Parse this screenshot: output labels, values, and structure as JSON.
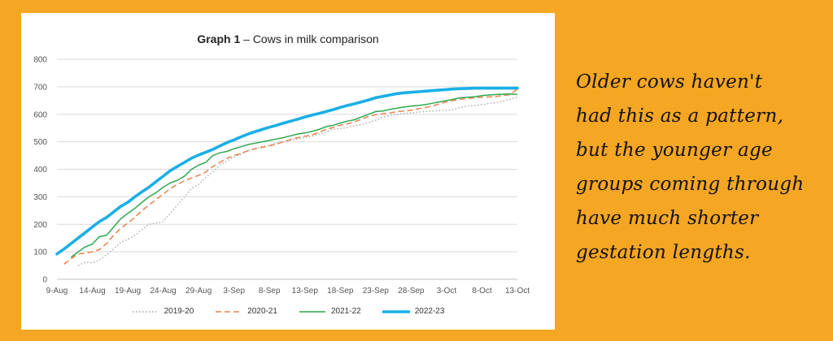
{
  "title_bold": "Graph 1",
  "title_rest": " – Cows in milk comparison",
  "note_lines": [
    "Older cows haven't",
    "had this as a pattern,",
    "but the younger age",
    "groups coming through",
    "have much shorter",
    "gestation lengths."
  ],
  "colors": {
    "background": "#F5A623",
    "s2019": "#a6a6a6",
    "s2020": "#E8824A",
    "s2021": "#2EA84F",
    "s2022": "#1AAFE6"
  },
  "chart_data": {
    "type": "line",
    "title": "Graph 1 – Cows in milk comparison",
    "xlabel": "",
    "ylabel": "",
    "ylim": [
      0,
      800
    ],
    "yticks": [
      0,
      100,
      200,
      300,
      400,
      500,
      600,
      700,
      800
    ],
    "xlim_days": [
      0,
      65
    ],
    "xticks": [
      {
        "day": 0,
        "label": "9-Aug"
      },
      {
        "day": 5,
        "label": "14-Aug"
      },
      {
        "day": 10,
        "label": "19-Aug"
      },
      {
        "day": 15,
        "label": "24-Aug"
      },
      {
        "day": 20,
        "label": "29-Aug"
      },
      {
        "day": 25,
        "label": "3-Sep"
      },
      {
        "day": 30,
        "label": "8-Sep"
      },
      {
        "day": 35,
        "label": "13-Sep"
      },
      {
        "day": 40,
        "label": "18-Sep"
      },
      {
        "day": 45,
        "label": "23-Sep"
      },
      {
        "day": 50,
        "label": "28-Sep"
      },
      {
        "day": 55,
        "label": "3-Oct"
      },
      {
        "day": 60,
        "label": "8-Oct"
      },
      {
        "day": 65,
        "label": "13-Oct"
      }
    ],
    "grid": true,
    "legend": "bottom",
    "series": [
      {
        "name": "2019-20",
        "key": "s2019",
        "style": "dotted",
        "points": [
          [
            3,
            50
          ],
          [
            4,
            62
          ],
          [
            5,
            60
          ],
          [
            6,
            70
          ],
          [
            7,
            90
          ],
          [
            8,
            110
          ],
          [
            9,
            135
          ],
          [
            10,
            145
          ],
          [
            11,
            160
          ],
          [
            12,
            180
          ],
          [
            13,
            200
          ],
          [
            14,
            205
          ],
          [
            15,
            210
          ],
          [
            16,
            240
          ],
          [
            17,
            270
          ],
          [
            18,
            300
          ],
          [
            19,
            330
          ],
          [
            20,
            345
          ],
          [
            21,
            370
          ],
          [
            22,
            390
          ],
          [
            23,
            415
          ],
          [
            24,
            430
          ],
          [
            25,
            445
          ],
          [
            26,
            455
          ],
          [
            27,
            468
          ],
          [
            28,
            475
          ],
          [
            29,
            482
          ],
          [
            30,
            488
          ],
          [
            31,
            495
          ],
          [
            32,
            500
          ],
          [
            33,
            506
          ],
          [
            34,
            510
          ],
          [
            35,
            515
          ],
          [
            36,
            520
          ],
          [
            37,
            528
          ],
          [
            38,
            535
          ],
          [
            39,
            545
          ],
          [
            40,
            548
          ],
          [
            41,
            552
          ],
          [
            42,
            558
          ],
          [
            43,
            563
          ],
          [
            44,
            570
          ],
          [
            45,
            578
          ],
          [
            46,
            590
          ],
          [
            47,
            595
          ],
          [
            48,
            600
          ],
          [
            49,
            603
          ],
          [
            50,
            605
          ],
          [
            51,
            608
          ],
          [
            52,
            610
          ],
          [
            53,
            612
          ],
          [
            54,
            613
          ],
          [
            55,
            615
          ],
          [
            56,
            618
          ],
          [
            57,
            625
          ],
          [
            58,
            630
          ],
          [
            59,
            632
          ],
          [
            60,
            635
          ],
          [
            61,
            640
          ],
          [
            62,
            642
          ],
          [
            63,
            648
          ],
          [
            64,
            655
          ],
          [
            65,
            662
          ]
        ]
      },
      {
        "name": "2020-21",
        "key": "s2020",
        "style": "dashed",
        "points": [
          [
            1,
            55
          ],
          [
            2,
            75
          ],
          [
            3,
            92
          ],
          [
            4,
            95
          ],
          [
            5,
            100
          ],
          [
            6,
            108
          ],
          [
            7,
            130
          ],
          [
            8,
            160
          ],
          [
            9,
            185
          ],
          [
            10,
            205
          ],
          [
            11,
            225
          ],
          [
            12,
            250
          ],
          [
            13,
            270
          ],
          [
            14,
            290
          ],
          [
            15,
            310
          ],
          [
            16,
            330
          ],
          [
            17,
            345
          ],
          [
            18,
            358
          ],
          [
            19,
            368
          ],
          [
            20,
            378
          ],
          [
            21,
            390
          ],
          [
            22,
            410
          ],
          [
            23,
            425
          ],
          [
            24,
            440
          ],
          [
            25,
            450
          ],
          [
            26,
            458
          ],
          [
            27,
            468
          ],
          [
            28,
            475
          ],
          [
            29,
            480
          ],
          [
            30,
            485
          ],
          [
            31,
            492
          ],
          [
            32,
            500
          ],
          [
            33,
            508
          ],
          [
            34,
            515
          ],
          [
            35,
            520
          ],
          [
            36,
            525
          ],
          [
            37,
            535
          ],
          [
            38,
            545
          ],
          [
            39,
            552
          ],
          [
            40,
            560
          ],
          [
            41,
            565
          ],
          [
            42,
            572
          ],
          [
            43,
            582
          ],
          [
            44,
            592
          ],
          [
            45,
            598
          ],
          [
            46,
            602
          ],
          [
            47,
            605
          ],
          [
            48,
            610
          ],
          [
            49,
            612
          ],
          [
            50,
            615
          ],
          [
            51,
            620
          ],
          [
            52,
            625
          ],
          [
            53,
            630
          ],
          [
            54,
            638
          ],
          [
            55,
            645
          ],
          [
            56,
            650
          ],
          [
            57,
            655
          ],
          [
            58,
            658
          ],
          [
            59,
            660
          ],
          [
            60,
            662
          ],
          [
            61,
            663
          ],
          [
            62,
            665
          ],
          [
            63,
            668
          ],
          [
            64,
            672
          ],
          [
            65,
            692
          ]
        ]
      },
      {
        "name": "2021-22",
        "key": "s2021",
        "style": "solid",
        "points": [
          [
            2,
            80
          ],
          [
            3,
            100
          ],
          [
            4,
            118
          ],
          [
            5,
            128
          ],
          [
            6,
            155
          ],
          [
            7,
            160
          ],
          [
            8,
            190
          ],
          [
            9,
            220
          ],
          [
            10,
            240
          ],
          [
            11,
            258
          ],
          [
            12,
            280
          ],
          [
            13,
            300
          ],
          [
            14,
            315
          ],
          [
            15,
            335
          ],
          [
            16,
            350
          ],
          [
            17,
            360
          ],
          [
            18,
            375
          ],
          [
            19,
            400
          ],
          [
            20,
            415
          ],
          [
            21,
            425
          ],
          [
            22,
            450
          ],
          [
            23,
            460
          ],
          [
            24,
            465
          ],
          [
            25,
            475
          ],
          [
            26,
            482
          ],
          [
            27,
            490
          ],
          [
            28,
            495
          ],
          [
            29,
            500
          ],
          [
            30,
            505
          ],
          [
            31,
            510
          ],
          [
            32,
            515
          ],
          [
            33,
            522
          ],
          [
            34,
            528
          ],
          [
            35,
            532
          ],
          [
            36,
            538
          ],
          [
            37,
            545
          ],
          [
            38,
            555
          ],
          [
            39,
            560
          ],
          [
            40,
            568
          ],
          [
            41,
            575
          ],
          [
            42,
            580
          ],
          [
            43,
            590
          ],
          [
            44,
            600
          ],
          [
            45,
            610
          ],
          [
            46,
            612
          ],
          [
            47,
            618
          ],
          [
            48,
            622
          ],
          [
            49,
            626
          ],
          [
            50,
            630
          ],
          [
            51,
            632
          ],
          [
            52,
            635
          ],
          [
            53,
            640
          ],
          [
            54,
            645
          ],
          [
            55,
            650
          ],
          [
            56,
            655
          ],
          [
            57,
            660
          ],
          [
            58,
            662
          ],
          [
            59,
            664
          ],
          [
            60,
            668
          ],
          [
            61,
            670
          ],
          [
            62,
            672
          ],
          [
            63,
            673
          ],
          [
            64,
            674
          ],
          [
            65,
            672
          ]
        ]
      },
      {
        "name": "2022-23",
        "key": "s2022",
        "style": "thick",
        "points": [
          [
            0,
            92
          ],
          [
            1,
            110
          ],
          [
            2,
            130
          ],
          [
            3,
            150
          ],
          [
            4,
            170
          ],
          [
            5,
            190
          ],
          [
            6,
            210
          ],
          [
            7,
            225
          ],
          [
            8,
            245
          ],
          [
            9,
            265
          ],
          [
            10,
            280
          ],
          [
            11,
            300
          ],
          [
            12,
            318
          ],
          [
            13,
            335
          ],
          [
            14,
            355
          ],
          [
            15,
            375
          ],
          [
            16,
            395
          ],
          [
            17,
            410
          ],
          [
            18,
            425
          ],
          [
            19,
            440
          ],
          [
            20,
            452
          ],
          [
            21,
            462
          ],
          [
            22,
            472
          ],
          [
            23,
            485
          ],
          [
            24,
            497
          ],
          [
            25,
            507
          ],
          [
            26,
            518
          ],
          [
            27,
            528
          ],
          [
            28,
            537
          ],
          [
            29,
            545
          ],
          [
            30,
            553
          ],
          [
            31,
            560
          ],
          [
            32,
            568
          ],
          [
            33,
            575
          ],
          [
            34,
            582
          ],
          [
            35,
            590
          ],
          [
            36,
            597
          ],
          [
            37,
            603
          ],
          [
            38,
            610
          ],
          [
            39,
            617
          ],
          [
            40,
            625
          ],
          [
            41,
            632
          ],
          [
            42,
            638
          ],
          [
            43,
            645
          ],
          [
            44,
            652
          ],
          [
            45,
            660
          ],
          [
            46,
            665
          ],
          [
            47,
            670
          ],
          [
            48,
            675
          ],
          [
            49,
            678
          ],
          [
            50,
            680
          ],
          [
            51,
            682
          ],
          [
            52,
            684
          ],
          [
            53,
            686
          ],
          [
            54,
            688
          ],
          [
            55,
            690
          ],
          [
            56,
            692
          ],
          [
            57,
            693
          ],
          [
            58,
            694
          ],
          [
            59,
            695
          ],
          [
            60,
            695
          ],
          [
            61,
            695
          ],
          [
            62,
            695
          ],
          [
            63,
            695
          ],
          [
            64,
            695
          ],
          [
            65,
            695
          ]
        ]
      }
    ]
  }
}
